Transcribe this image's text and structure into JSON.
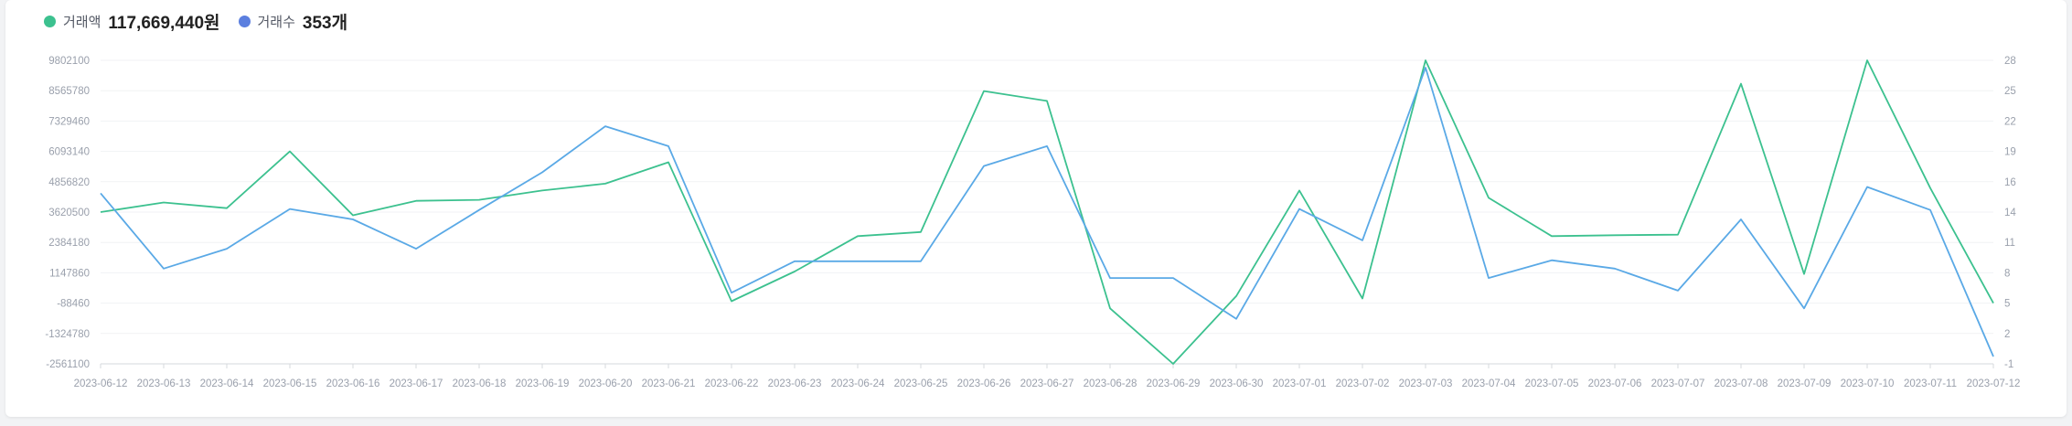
{
  "legend": {
    "amount": {
      "label": "거래액",
      "value": "117,669,440원",
      "color": "#3cc18f"
    },
    "count": {
      "label": "거래수",
      "value": "353개",
      "color": "#5b7fdf"
    }
  },
  "chart_data": {
    "type": "line",
    "x": [
      "2023-06-12",
      "2023-06-13",
      "2023-06-14",
      "2023-06-15",
      "2023-06-16",
      "2023-06-17",
      "2023-06-18",
      "2023-06-19",
      "2023-06-20",
      "2023-06-21",
      "2023-06-22",
      "2023-06-23",
      "2023-06-24",
      "2023-06-25",
      "2023-06-26",
      "2023-06-27",
      "2023-06-28",
      "2023-06-29",
      "2023-06-30",
      "2023-07-01",
      "2023-07-02",
      "2023-07-03",
      "2023-07-04",
      "2023-07-05",
      "2023-07-06",
      "2023-07-07",
      "2023-07-08",
      "2023-07-09",
      "2023-07-10",
      "2023-07-11",
      "2023-07-12"
    ],
    "y_left_ticks": [
      "9802100",
      "8565780",
      "7329460",
      "6093140",
      "4856820",
      "3620500",
      "2384180",
      "1147860",
      "-88460",
      "-1324780",
      "-2561100"
    ],
    "y_right_ticks": [
      "28",
      "25",
      "22",
      "19",
      "16",
      "14",
      "11",
      "8",
      "5",
      "2",
      "-1"
    ],
    "y_left_range": [
      -2561100,
      9802100
    ],
    "y_right_range": [
      -1,
      28
    ],
    "grid": "horizontal",
    "series": [
      {
        "name": "거래액",
        "axis": "left",
        "color": "#3cc18f",
        "values": [
          3620500,
          4010000,
          3780000,
          6093140,
          3490000,
          4080000,
          4120000,
          4500000,
          4780000,
          5650000,
          -10000,
          1200000,
          2640000,
          2810000,
          8550000,
          8150000,
          -300000,
          -2561100,
          200000,
          4500000,
          100000,
          9802100,
          4200000,
          2640000,
          2680000,
          2700000,
          8850000,
          1100000,
          9802100,
          4600000,
          -88460
        ]
      },
      {
        "name": "거래수",
        "axis": "right",
        "color": "#5aa9e6",
        "values": [
          15.3,
          8.1,
          10,
          13.8,
          12.8,
          10,
          13.7,
          17.3,
          21.7,
          19.8,
          5.8,
          8.8,
          8.8,
          8.8,
          17.9,
          19.8,
          7.2,
          7.2,
          3.3,
          13.8,
          10.8,
          27.3,
          7.2,
          8.9,
          8.1,
          6,
          12.8,
          4.3,
          15.9,
          13.7,
          -0.3
        ]
      }
    ]
  }
}
